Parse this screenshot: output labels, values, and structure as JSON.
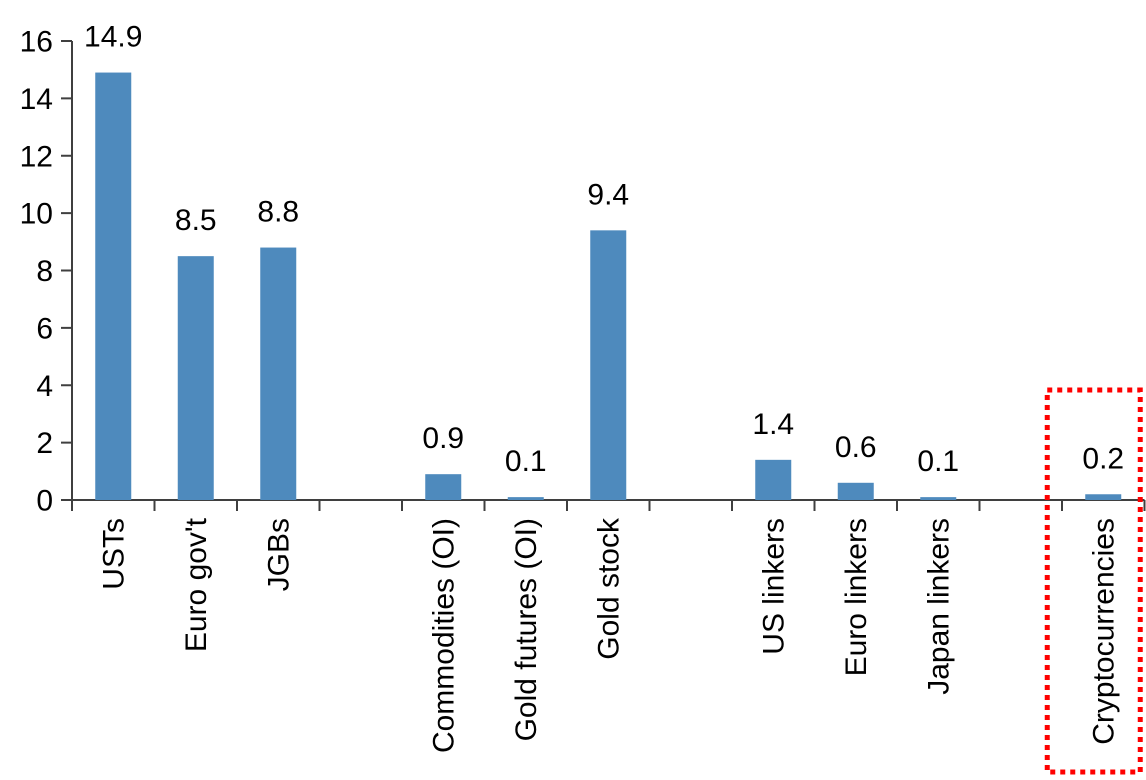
{
  "chart_data": {
    "type": "bar",
    "title": "",
    "xlabel": "",
    "ylabel": "",
    "categories": [
      "USTs",
      "Euro gov't",
      "JGBs",
      "Commodities (OI)",
      "Gold futures (OI)",
      "Gold stock",
      "US linkers",
      "Euro linkers",
      "Japan linkers",
      "Cryptocurrencies"
    ],
    "values": [
      14.9,
      8.5,
      8.8,
      0.9,
      0.1,
      9.4,
      1.4,
      0.6,
      0.1,
      0.2
    ],
    "data_labels": [
      "14.9",
      "8.5",
      "8.8",
      "0.9",
      "0.1",
      "9.4",
      "1.4",
      "0.6",
      "0.1",
      "0.2"
    ],
    "category_slots": [
      0,
      1,
      2,
      4,
      5,
      6,
      8,
      9,
      10,
      12
    ],
    "total_slots": 13,
    "y_ticks": [
      0,
      2,
      4,
      6,
      8,
      10,
      12,
      14,
      16
    ],
    "ylim": [
      0,
      16
    ],
    "grid": false,
    "legend": false,
    "bar_color": "#4E8ABD",
    "axis_color": "#3F3F3F",
    "text_color": "#000000",
    "highlight": {
      "category": "Cryptocurrencies",
      "style": "dotted-box",
      "color": "#FF0000"
    }
  }
}
